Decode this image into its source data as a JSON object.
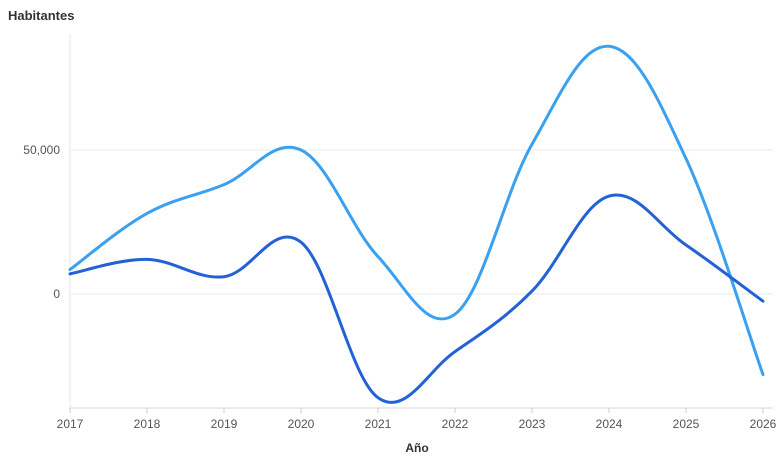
{
  "chart_data": {
    "type": "line",
    "title": "",
    "ylabel": "Habitantes",
    "xlabel": "Año",
    "categories": [
      "2017",
      "2018",
      "2019",
      "2020",
      "2021",
      "2022",
      "2023",
      "2024",
      "2025",
      "2026"
    ],
    "y_ticks": [
      "50,000",
      "0"
    ],
    "ylim": [
      -40000,
      90000
    ],
    "grid": true,
    "series": [
      {
        "color": "#3aa0f0",
        "values": [
          8500,
          28000,
          38000,
          50000,
          13000,
          -7000,
          52000,
          86000,
          47000,
          -28000
        ]
      },
      {
        "color": "#2361d6",
        "values": [
          7000,
          12000,
          6000,
          18000,
          -36000,
          -20000,
          1000,
          34000,
          17000,
          -2500
        ]
      }
    ]
  }
}
